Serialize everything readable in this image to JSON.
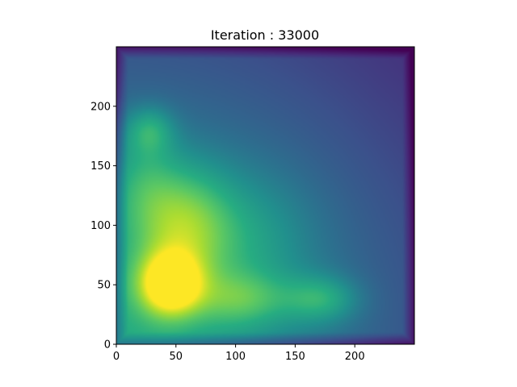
{
  "chart_data": {
    "type": "heatmap",
    "title": "Iteration : 33000",
    "xlabel": "",
    "ylabel": "",
    "xlim": [
      0,
      250
    ],
    "ylim": [
      0,
      250
    ],
    "origin": "lower",
    "colormap": "viridis",
    "grid": false,
    "x_ticks": [
      0,
      50,
      100,
      150,
      200
    ],
    "y_ticks": [
      0,
      50,
      100,
      150,
      200
    ],
    "field": {
      "base": 0.62,
      "decay_scale": 280,
      "decay_power": 1.6,
      "blobs": [
        {
          "x": 45,
          "y": 50,
          "sx": 18,
          "sy": 18,
          "amp": 0.62
        },
        {
          "x": 55,
          "y": 100,
          "sx": 28,
          "sy": 35,
          "amp": 0.34
        },
        {
          "x": 28,
          "y": 180,
          "sx": 14,
          "sy": 14,
          "amp": 0.22
        },
        {
          "x": 22,
          "y": 140,
          "sx": 20,
          "sy": 30,
          "amp": 0.15
        },
        {
          "x": 105,
          "y": 38,
          "sx": 28,
          "sy": 16,
          "amp": 0.22
        },
        {
          "x": 172,
          "y": 38,
          "sx": 22,
          "sy": 14,
          "amp": 0.25
        },
        {
          "x": 110,
          "y": 90,
          "sx": 40,
          "sy": 40,
          "amp": 0.14
        }
      ],
      "edge_dim": {
        "width": 10,
        "amount": 0.22
      }
    }
  }
}
